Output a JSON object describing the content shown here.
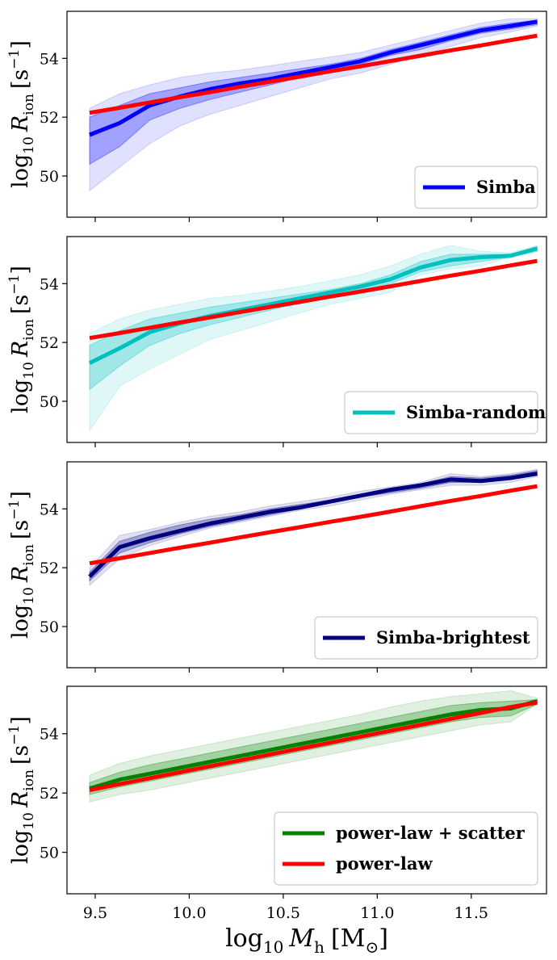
{
  "chart_data": [
    {
      "type": "line",
      "ylabel": "log10 R_ion [s^-1]",
      "xlabel": "",
      "ylim": [
        48.6,
        55.6
      ],
      "xlim": [
        9.35,
        11.9
      ],
      "yticks": [
        "50",
        "52",
        "54"
      ],
      "xticks": [],
      "color": "#0000ff",
      "x": [
        9.47,
        9.63,
        9.79,
        9.95,
        10.11,
        10.27,
        10.43,
        10.59,
        10.75,
        10.91,
        11.07,
        11.23,
        11.39,
        11.55,
        11.71,
        11.85
      ],
      "band_outer": {
        "lower": [
          49.5,
          50.3,
          51.1,
          51.7,
          52.1,
          52.4,
          52.7,
          53.0,
          53.3,
          53.5,
          53.8,
          54.1,
          54.4,
          54.7,
          54.9,
          55.1
        ],
        "upper": [
          52.3,
          52.8,
          53.1,
          53.35,
          53.5,
          53.6,
          53.75,
          53.9,
          54.05,
          54.2,
          54.45,
          54.7,
          54.95,
          55.2,
          55.35,
          55.35
        ]
      },
      "band_inner": {
        "lower": [
          50.4,
          51.0,
          51.9,
          52.3,
          52.6,
          52.85,
          53.1,
          53.35,
          53.6,
          53.8,
          54.1,
          54.3,
          54.6,
          54.85,
          55.0,
          55.15
        ],
        "upper": [
          52.0,
          52.4,
          52.8,
          53.0,
          53.2,
          53.35,
          53.5,
          53.65,
          53.8,
          54.0,
          54.3,
          54.55,
          54.8,
          55.05,
          55.2,
          55.3
        ]
      },
      "series": [
        {
          "name": "Simba",
          "values": [
            51.4,
            51.8,
            52.4,
            52.7,
            52.95,
            53.15,
            53.3,
            53.5,
            53.7,
            53.9,
            54.2,
            54.45,
            54.7,
            54.95,
            55.1,
            55.25
          ]
        },
        {
          "name": "power-law",
          "values": [
            52.15,
            52.32,
            52.5,
            52.68,
            52.85,
            53.03,
            53.21,
            53.38,
            53.56,
            53.73,
            53.91,
            54.09,
            54.27,
            54.44,
            54.62,
            54.77
          ]
        }
      ],
      "legend": [
        {
          "label": "Simba",
          "color": "#0000ff"
        }
      ],
      "legend_position": "lower-right"
    },
    {
      "type": "line",
      "ylabel": "log10 R_ion [s^-1]",
      "xlabel": "",
      "ylim": [
        48.6,
        55.6
      ],
      "xlim": [
        9.35,
        11.9
      ],
      "yticks": [
        "50",
        "52",
        "54"
      ],
      "xticks": [],
      "color": "#00bfbf",
      "x": [
        9.47,
        9.63,
        9.79,
        9.95,
        10.11,
        10.27,
        10.43,
        10.59,
        10.75,
        10.91,
        11.07,
        11.23,
        11.39,
        11.55,
        11.71,
        11.85
      ],
      "band_outer": {
        "lower": [
          49.0,
          50.5,
          51.1,
          51.6,
          52.1,
          52.4,
          52.7,
          53.0,
          53.3,
          53.5,
          53.7,
          54.3,
          54.5,
          54.6,
          54.9,
          55.1
        ],
        "upper": [
          52.3,
          52.8,
          53.1,
          53.3,
          53.5,
          53.6,
          53.75,
          53.9,
          54.1,
          54.3,
          54.6,
          55.0,
          55.3,
          55.1,
          55.05,
          55.3
        ]
      },
      "band_inner": {
        "lower": [
          50.4,
          51.2,
          51.9,
          52.3,
          52.6,
          52.85,
          53.1,
          53.35,
          53.6,
          53.8,
          54.0,
          54.4,
          54.6,
          54.75,
          54.9,
          55.1
        ],
        "upper": [
          51.9,
          52.4,
          52.8,
          53.0,
          53.2,
          53.35,
          53.5,
          53.65,
          53.8,
          54.0,
          54.3,
          54.75,
          55.0,
          55.0,
          55.0,
          55.25
        ]
      },
      "series": [
        {
          "name": "Simba-random",
          "values": [
            51.3,
            51.8,
            52.35,
            52.65,
            52.9,
            53.1,
            53.3,
            53.5,
            53.7,
            53.9,
            54.15,
            54.55,
            54.8,
            54.9,
            54.95,
            55.2
          ]
        },
        {
          "name": "power-law",
          "values": [
            52.15,
            52.32,
            52.5,
            52.68,
            52.85,
            53.03,
            53.21,
            53.38,
            53.56,
            53.73,
            53.91,
            54.09,
            54.27,
            54.44,
            54.62,
            54.77
          ]
        }
      ],
      "legend": [
        {
          "label": "Simba-random",
          "color": "#00bfbf"
        }
      ],
      "legend_position": "lower-right"
    },
    {
      "type": "line",
      "ylabel": "log10 R_ion [s^-1]",
      "xlabel": "",
      "ylim": [
        48.6,
        55.6
      ],
      "xlim": [
        9.35,
        11.9
      ],
      "yticks": [
        "50",
        "52",
        "54"
      ],
      "xticks": [],
      "color": "#000080",
      "x": [
        9.47,
        9.63,
        9.79,
        9.95,
        10.11,
        10.27,
        10.43,
        10.59,
        10.75,
        10.91,
        11.07,
        11.23,
        11.39,
        11.55,
        11.71,
        11.85
      ],
      "band_outer": {
        "lower": [
          51.4,
          52.3,
          52.75,
          53.05,
          53.35,
          53.55,
          53.75,
          53.95,
          54.1,
          54.3,
          54.5,
          54.65,
          54.8,
          54.8,
          54.9,
          55.1
        ],
        "upper": [
          52.0,
          53.1,
          53.3,
          53.55,
          53.75,
          53.9,
          54.1,
          54.25,
          54.4,
          54.6,
          54.75,
          54.9,
          55.2,
          55.1,
          55.2,
          55.35
        ]
      },
      "band_inner": {
        "lower": [
          51.55,
          52.5,
          52.85,
          53.15,
          53.4,
          53.6,
          53.8,
          54.0,
          54.2,
          54.4,
          54.55,
          54.7,
          54.9,
          54.9,
          55.0,
          55.15
        ],
        "upper": [
          51.85,
          52.9,
          53.2,
          53.45,
          53.65,
          53.8,
          54.0,
          54.15,
          54.3,
          54.5,
          54.7,
          54.85,
          55.1,
          55.05,
          55.15,
          55.3
        ]
      },
      "series": [
        {
          "name": "Simba-brightest",
          "values": [
            51.7,
            52.7,
            53.0,
            53.25,
            53.5,
            53.7,
            53.9,
            54.05,
            54.25,
            54.45,
            54.65,
            54.8,
            55.0,
            54.95,
            55.05,
            55.2
          ]
        },
        {
          "name": "power-law",
          "values": [
            52.15,
            52.32,
            52.5,
            52.68,
            52.85,
            53.03,
            53.21,
            53.38,
            53.56,
            53.73,
            53.91,
            54.09,
            54.27,
            54.44,
            54.62,
            54.77
          ]
        }
      ],
      "legend": [
        {
          "label": "Simba-brightest",
          "color": "#000080"
        }
      ],
      "legend_position": "lower-right"
    },
    {
      "type": "line",
      "ylabel": "log10 R_ion [s^-1]",
      "xlabel": "log10 M_h [M_sun]",
      "ylim": [
        48.6,
        55.6
      ],
      "xlim": [
        9.35,
        11.9
      ],
      "yticks": [
        "50",
        "52",
        "54"
      ],
      "xticks": [
        "9.5",
        "10.0",
        "10.5",
        "11.0",
        "11.5"
      ],
      "color": "#008000",
      "x": [
        9.47,
        9.63,
        9.79,
        9.95,
        10.11,
        10.27,
        10.43,
        10.59,
        10.75,
        10.91,
        11.07,
        11.23,
        11.39,
        11.55,
        11.71,
        11.85
      ],
      "band_outer": {
        "lower": [
          51.7,
          51.95,
          52.1,
          52.3,
          52.5,
          52.7,
          52.9,
          53.1,
          53.3,
          53.5,
          53.7,
          53.9,
          54.1,
          54.3,
          54.4,
          55.0
        ],
        "upper": [
          52.6,
          53.0,
          53.25,
          53.45,
          53.65,
          53.85,
          54.05,
          54.25,
          54.45,
          54.65,
          54.9,
          55.1,
          55.25,
          55.35,
          55.45,
          55.2
        ]
      },
      "band_inner": {
        "lower": [
          51.95,
          52.2,
          52.4,
          52.6,
          52.8,
          53.0,
          53.2,
          53.4,
          53.6,
          53.8,
          54.0,
          54.2,
          54.4,
          54.55,
          54.6,
          55.0
        ],
        "upper": [
          52.35,
          52.7,
          52.95,
          53.15,
          53.35,
          53.55,
          53.75,
          53.95,
          54.15,
          54.35,
          54.55,
          54.75,
          54.95,
          55.05,
          55.1,
          55.15
        ]
      },
      "series": [
        {
          "name": "power-law + scatter",
          "values": [
            52.15,
            52.45,
            52.65,
            52.85,
            53.05,
            53.25,
            53.45,
            53.65,
            53.85,
            54.05,
            54.25,
            54.45,
            54.65,
            54.8,
            54.85,
            55.1
          ]
        },
        {
          "name": "power-law",
          "values": [
            52.1,
            52.3,
            52.5,
            52.7,
            52.9,
            53.1,
            53.3,
            53.5,
            53.7,
            53.9,
            54.1,
            54.3,
            54.5,
            54.7,
            54.9,
            55.05
          ]
        }
      ],
      "legend": [
        {
          "label": "power-law + scatter",
          "color": "#008000"
        },
        {
          "label": "power-law",
          "color": "#ff0000"
        }
      ],
      "legend_position": "lower-right"
    }
  ],
  "powerlaw_color": "#ff0000"
}
